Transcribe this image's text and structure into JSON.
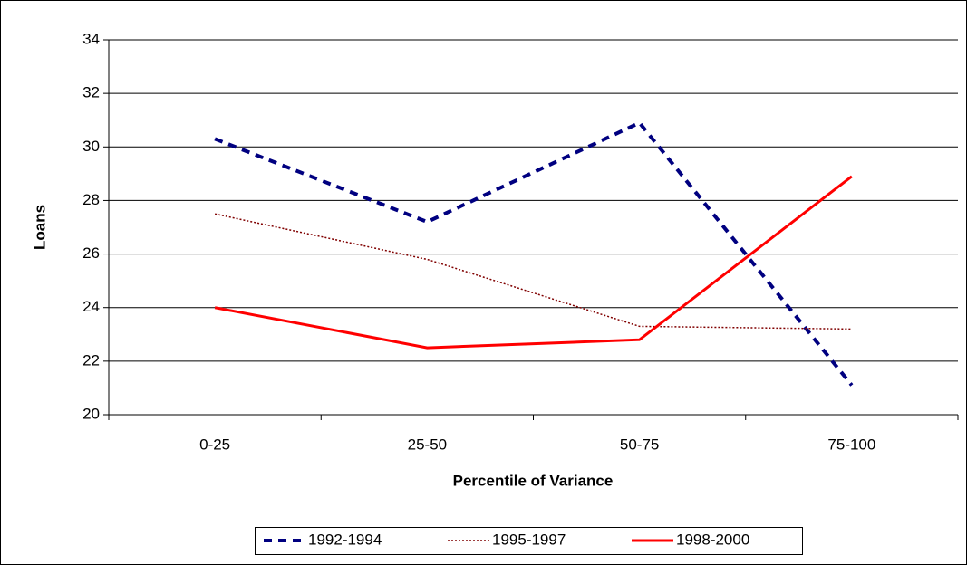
{
  "chart_data": {
    "type": "line",
    "xlabel": "Percentile of Variance",
    "ylabel": "Loans",
    "categories": [
      "0-25",
      "25-50",
      "50-75",
      "75-100"
    ],
    "series": [
      {
        "name": "1992-1994",
        "color": "#000080",
        "style": "dashed",
        "values": [
          30.3,
          27.2,
          30.9,
          21.1
        ]
      },
      {
        "name": "1995-1997",
        "color": "#800000",
        "style": "dotted",
        "values": [
          27.5,
          25.8,
          23.3,
          23.2
        ]
      },
      {
        "name": "1998-2000",
        "color": "#ff0000",
        "style": "solid",
        "values": [
          24.0,
          22.5,
          22.8,
          28.9
        ]
      }
    ],
    "ylim": [
      20,
      34
    ],
    "yticks": [
      20,
      22,
      24,
      26,
      28,
      30,
      32,
      34
    ],
    "grid": true,
    "legend": "bottom"
  }
}
